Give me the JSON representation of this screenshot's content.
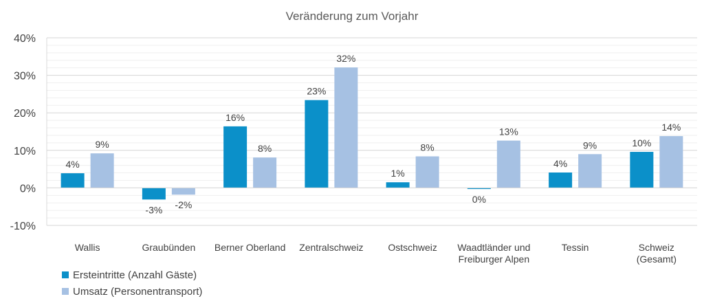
{
  "chart_data": {
    "type": "bar",
    "title": "Veränderung zum Vorjahr",
    "categories": [
      "Wallis",
      "Graubünden",
      "Berner Oberland",
      "Zentralschweiz",
      "Ostschweiz",
      "Waadtländer und Freiburger Alpen",
      "Tessin",
      "Schweiz (Gesamt)"
    ],
    "category_lines": [
      [
        "Wallis"
      ],
      [
        "Graubünden"
      ],
      [
        "Berner Oberland"
      ],
      [
        "Zentralschweiz"
      ],
      [
        "Ostschweiz"
      ],
      [
        "Waadtländer und",
        "Freiburger Alpen"
      ],
      [
        "Tessin"
      ],
      [
        "Schweiz",
        "(Gesamt)"
      ]
    ],
    "series": [
      {
        "name": "Ersteintritte (Anzahl Gäste)",
        "color": "#0b90c9",
        "values": [
          3.9,
          -3.1,
          16.4,
          23.4,
          1.5,
          -0.3,
          4.1,
          9.6
        ],
        "labels": [
          "4%",
          "-3%",
          "16%",
          "23%",
          "1%",
          "0%",
          "4%",
          "10%"
        ]
      },
      {
        "name": "Umsatz (Personentransport)",
        "color": "#a6c1e3",
        "values": [
          9.2,
          -1.8,
          8.1,
          32.1,
          8.4,
          12.6,
          9.0,
          13.8
        ],
        "labels": [
          "9%",
          "-2%",
          "8%",
          "32%",
          "8%",
          "13%",
          "9%",
          "14%"
        ]
      }
    ],
    "ylim": [
      -10,
      40
    ],
    "y_ticks": [
      -10,
      0,
      10,
      20,
      30,
      40
    ],
    "y_tick_labels": [
      "-10%",
      "0%",
      "10%",
      "20%",
      "30%",
      "40%"
    ],
    "y_minor_step": 2,
    "grid": true,
    "xlabel": "",
    "ylabel": "",
    "legend_position": "bottom-left"
  }
}
